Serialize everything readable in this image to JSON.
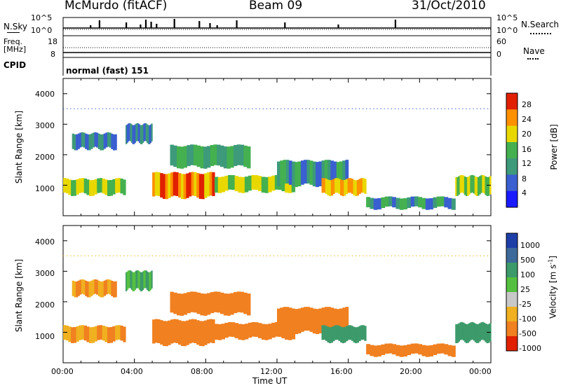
{
  "header": {
    "station": "McMurdo (fitACF)",
    "beam": "Beam 09",
    "date": "31/Oct/2010"
  },
  "strips": {
    "nsky_label": "N.Sky",
    "nsky_hi": "10^5",
    "nsky_lo": "10^0",
    "nsearch_label": "N.Search",
    "nsearch_hi": "10^5",
    "nsearch_lo": "10^0",
    "freq_label": "Freq.",
    "freq_unit": "[MHz]",
    "freq_hi": "18",
    "freq_lo": "8",
    "nave_label": "Nave",
    "nave_hi": "60",
    "nave_lo": "0",
    "cpid_label": "CPID",
    "cpid_value": "normal (fast) 151"
  },
  "chart_data": [
    {
      "type": "heatmap",
      "name": "power",
      "ylabel": "Slant Range [km]",
      "xlabel": "Time UT",
      "yticks": [
        "1000",
        "2000",
        "3000",
        "4000"
      ],
      "colorbar_label": "Power [dB]",
      "colorbar_ticks": [
        "4",
        "8",
        "12",
        "16",
        "20",
        "24",
        "28"
      ],
      "colorbar_colors": [
        "#1a1aff",
        "#3a5fd0",
        "#3d9a7a",
        "#44b050",
        "#e8d800",
        "#ff9000",
        "#e02000"
      ],
      "bands": [
        {
          "t0": 0.0,
          "t1": 3.5,
          "r0": 700,
          "r1": 1200,
          "level": 20
        },
        {
          "t0": 0.5,
          "t1": 3.0,
          "r0": 2200,
          "r1": 2700,
          "level": 12
        },
        {
          "t0": 3.5,
          "t1": 5.0,
          "r0": 2400,
          "r1": 3000,
          "level": 12
        },
        {
          "t0": 5.0,
          "t1": 8.5,
          "r0": 600,
          "r1": 1400,
          "level": 26
        },
        {
          "t0": 6.0,
          "t1": 10.5,
          "r0": 1600,
          "r1": 2300,
          "level": 16
        },
        {
          "t0": 8.5,
          "t1": 13.0,
          "r0": 800,
          "r1": 1300,
          "level": 20
        },
        {
          "t0": 12.0,
          "t1": 16.0,
          "r0": 1000,
          "r1": 1800,
          "level": 14
        },
        {
          "t0": 14.5,
          "t1": 17.0,
          "r0": 700,
          "r1": 1200,
          "level": 24
        },
        {
          "t0": 17.0,
          "t1": 22.0,
          "r0": 250,
          "r1": 600,
          "level": 14
        },
        {
          "t0": 22.0,
          "t1": 24.0,
          "r0": 700,
          "r1": 1300,
          "level": 20
        }
      ]
    },
    {
      "type": "heatmap",
      "name": "velocity",
      "ylabel": "Slant Range [km]",
      "xlabel": "Time UT",
      "yticks": [
        "1000",
        "2000",
        "3000",
        "4000"
      ],
      "xticks": [
        "00:00",
        "04:00",
        "08:00",
        "12:00",
        "16:00",
        "20:00",
        "00:00"
      ],
      "colorbar_label": "Velocity [m s^-1]",
      "colorbar_ticks": [
        "1000",
        "500",
        "100",
        "25",
        "-25",
        "-100",
        "-500",
        "-1000"
      ],
      "colorbar_colors": [
        "#1e3ea8",
        "#3d6a9a",
        "#3d9a6a",
        "#55c040",
        "#c8c8c8",
        "#f0b020",
        "#f08020",
        "#e02000"
      ],
      "bands": [
        {
          "t0": 0.0,
          "t1": 3.5,
          "r0": 700,
          "r1": 1200,
          "level": -100
        },
        {
          "t0": 0.5,
          "t1": 3.0,
          "r0": 2200,
          "r1": 2700,
          "level": -100
        },
        {
          "t0": 3.5,
          "t1": 5.0,
          "r0": 2400,
          "r1": 3000,
          "level": 100
        },
        {
          "t0": 5.0,
          "t1": 8.5,
          "r0": 600,
          "r1": 1400,
          "level": -300
        },
        {
          "t0": 6.0,
          "t1": 10.5,
          "r0": 1600,
          "r1": 2300,
          "level": -300
        },
        {
          "t0": 8.5,
          "t1": 13.0,
          "r0": 800,
          "r1": 1300,
          "level": -300
        },
        {
          "t0": 12.0,
          "t1": 16.0,
          "r0": 1000,
          "r1": 1800,
          "level": -300
        },
        {
          "t0": 14.5,
          "t1": 17.0,
          "r0": 700,
          "r1": 1200,
          "level": 300
        },
        {
          "t0": 17.0,
          "t1": 22.0,
          "r0": 250,
          "r1": 600,
          "level": -300
        },
        {
          "t0": 22.0,
          "t1": 24.0,
          "r0": 700,
          "r1": 1300,
          "level": 300
        }
      ]
    }
  ]
}
